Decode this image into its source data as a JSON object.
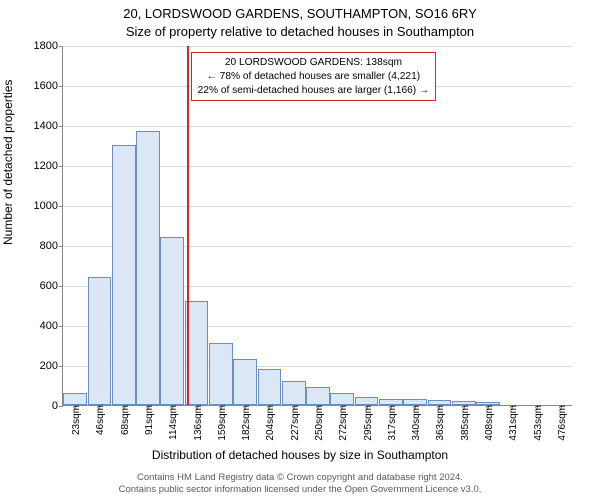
{
  "title_line1": "20, LORDSWOOD GARDENS, SOUTHAMPTON, SO16 6RY",
  "title_line2": "Size of property relative to detached houses in Southampton",
  "ylabel": "Number of detached properties",
  "xlabel": "Distribution of detached houses by size in Southampton",
  "attribution_line1": "Contains HM Land Registry data © Crown copyright and database right 2024.",
  "attribution_line2": "Contains public sector information licensed under the Open Government Licence v3.0.",
  "chart": {
    "type": "histogram",
    "ylim": [
      0,
      1800
    ],
    "ytick_step": 200,
    "yticks": [
      0,
      200,
      400,
      600,
      800,
      1000,
      1200,
      1400,
      1600,
      1800
    ],
    "x_categories": [
      "23sqm",
      "46sqm",
      "68sqm",
      "91sqm",
      "114sqm",
      "136sqm",
      "159sqm",
      "182sqm",
      "204sqm",
      "227sqm",
      "250sqm",
      "272sqm",
      "295sqm",
      "317sqm",
      "340sqm",
      "363sqm",
      "385sqm",
      "408sqm",
      "431sqm",
      "453sqm",
      "476sqm"
    ],
    "values": [
      60,
      640,
      1300,
      1370,
      840,
      520,
      310,
      230,
      180,
      120,
      90,
      60,
      40,
      30,
      30,
      25,
      20,
      15,
      0,
      0,
      0
    ],
    "bar_fill": "#dbe7f5",
    "bar_stroke": "#6a8fbf",
    "grid_color": "#d9d9d9",
    "background_color": "#ffffff",
    "axis_color": "#888888",
    "marker_line": {
      "x_index_after": 5,
      "fraction_into_bin": 0.09,
      "color": "#d62728"
    },
    "annotation": {
      "border_color": "#d62728",
      "lines": [
        "20 LORDSWOOD GARDENS: 138sqm",
        "← 78% of detached houses are smaller (4,221)",
        "22% of semi-detached houses are larger (1,166) →"
      ]
    }
  }
}
